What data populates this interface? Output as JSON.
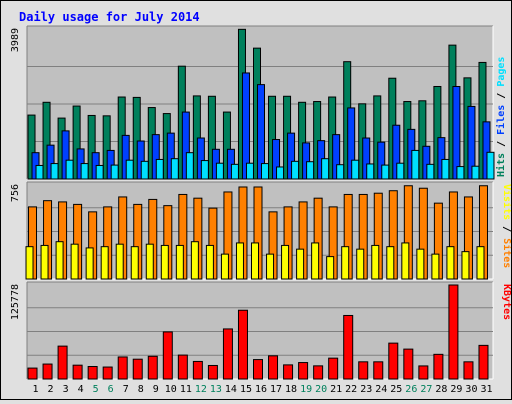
{
  "title": "Daily usage for July 2014",
  "colors": {
    "pages": "#00805c",
    "files": "#0040ff",
    "hits": "#00e0ff",
    "sites": "#ff8000",
    "visits": "#ffff00",
    "kbytes": "#ff0000",
    "plot_bg": "#c0c0c0",
    "frame_bg": "#e0e0e0",
    "title": "#0000ff"
  },
  "chart_data": [
    {
      "type": "bar",
      "panel": "hits_files_pages",
      "max_label": "3989",
      "ylim": [
        0,
        3989
      ],
      "legend_right": [
        "Pages",
        "Files",
        "Hits"
      ],
      "series": [
        {
          "name": "Pages",
          "values": [
            1700,
            2040,
            1620,
            1940,
            1690,
            1680,
            2180,
            2170,
            1900,
            1740,
            3000,
            2210,
            2200,
            1780,
            3980,
            3480,
            2200,
            2200,
            2040,
            2060,
            2180,
            3120,
            2000,
            2210,
            2680,
            2060,
            2080,
            2460,
            3560,
            2690,
            3100
          ]
        },
        {
          "name": "Files",
          "values": [
            700,
            900,
            1280,
            800,
            700,
            760,
            1160,
            1010,
            1180,
            1220,
            1780,
            1090,
            790,
            790,
            2820,
            2510,
            1050,
            1220,
            960,
            1020,
            1180,
            1890,
            1090,
            980,
            1430,
            1320,
            870,
            1100,
            2460,
            1930,
            1520
          ]
        },
        {
          "name": "Hits",
          "values": [
            360,
            410,
            500,
            410,
            360,
            370,
            500,
            470,
            520,
            540,
            700,
            490,
            420,
            390,
            420,
            410,
            320,
            470,
            460,
            540,
            380,
            500,
            400,
            370,
            420,
            760,
            390,
            520,
            330,
            340,
            710
          ]
        }
      ]
    },
    {
      "type": "bar",
      "panel": "sites_visits",
      "max_label": "756",
      "ylim": [
        0,
        756
      ],
      "legend_right": [
        "Sites",
        "/",
        "Visits"
      ],
      "series": [
        {
          "name": "Sites",
          "values": [
            580,
            630,
            620,
            600,
            540,
            580,
            660,
            600,
            640,
            590,
            680,
            650,
            570,
            700,
            740,
            740,
            540,
            580,
            620,
            650,
            580,
            680,
            680,
            690,
            710,
            750,
            730,
            610,
            700,
            660,
            750
          ]
        },
        {
          "name": "Visits",
          "values": [
            260,
            270,
            300,
            280,
            250,
            260,
            280,
            260,
            280,
            270,
            270,
            300,
            270,
            200,
            290,
            290,
            200,
            270,
            240,
            290,
            180,
            260,
            240,
            270,
            260,
            290,
            240,
            200,
            260,
            220,
            260
          ]
        }
      ]
    },
    {
      "type": "bar",
      "panel": "kbytes",
      "max_label": "125778",
      "ylim": [
        0,
        125778
      ],
      "legend_right": [
        "KBytes"
      ],
      "series": [
        {
          "name": "KBytes",
          "values": [
            14600,
            20000,
            44000,
            18500,
            16700,
            16000,
            29500,
            26500,
            30400,
            63000,
            32000,
            23500,
            18100,
            67000,
            92000,
            26000,
            31000,
            18900,
            22000,
            17600,
            27900,
            85000,
            23000,
            23000,
            48000,
            40000,
            17500,
            33000,
            127000,
            23000,
            45000
          ]
        }
      ]
    }
  ],
  "x_labels": [
    "1",
    "2",
    "3",
    "4",
    "5",
    "6",
    "7",
    "8",
    "9",
    "10",
    "11",
    "12",
    "13",
    "14",
    "15",
    "16",
    "17",
    "18",
    "19",
    "20",
    "21",
    "22",
    "23",
    "24",
    "25",
    "26",
    "27",
    "28",
    "29",
    "30",
    "31"
  ],
  "weekend_days": [
    5,
    6,
    12,
    13,
    19,
    20,
    26,
    27
  ]
}
